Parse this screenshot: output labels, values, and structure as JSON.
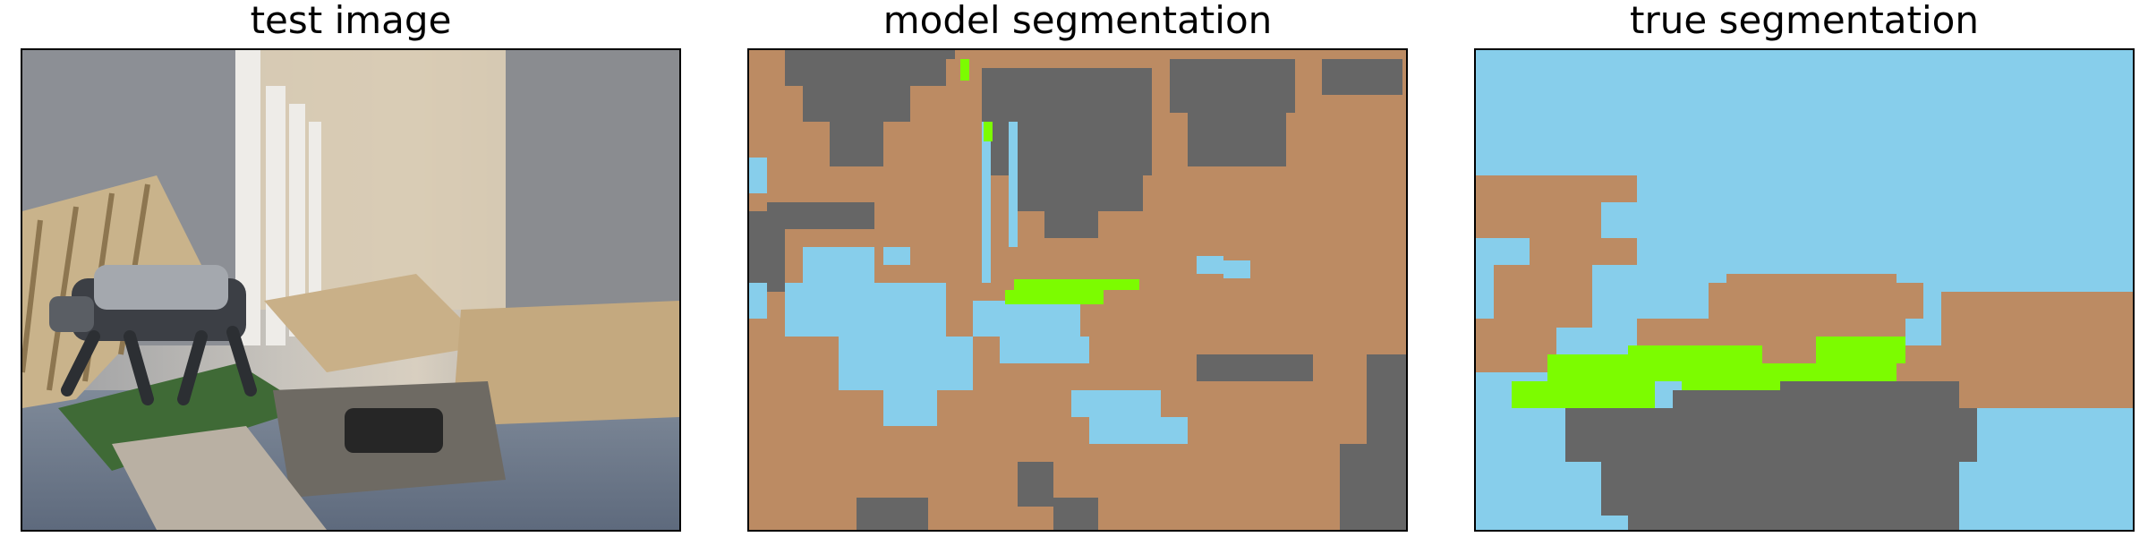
{
  "panels": [
    {
      "title": "test image"
    },
    {
      "title": "model segmentation"
    },
    {
      "title": "true segmentation"
    }
  ],
  "colors": {
    "terrain_tan": "#BC8B63",
    "obstacle_gray": "#666666",
    "sky_blue": "#87CEEB",
    "grass_green": "#7CFC00"
  }
}
